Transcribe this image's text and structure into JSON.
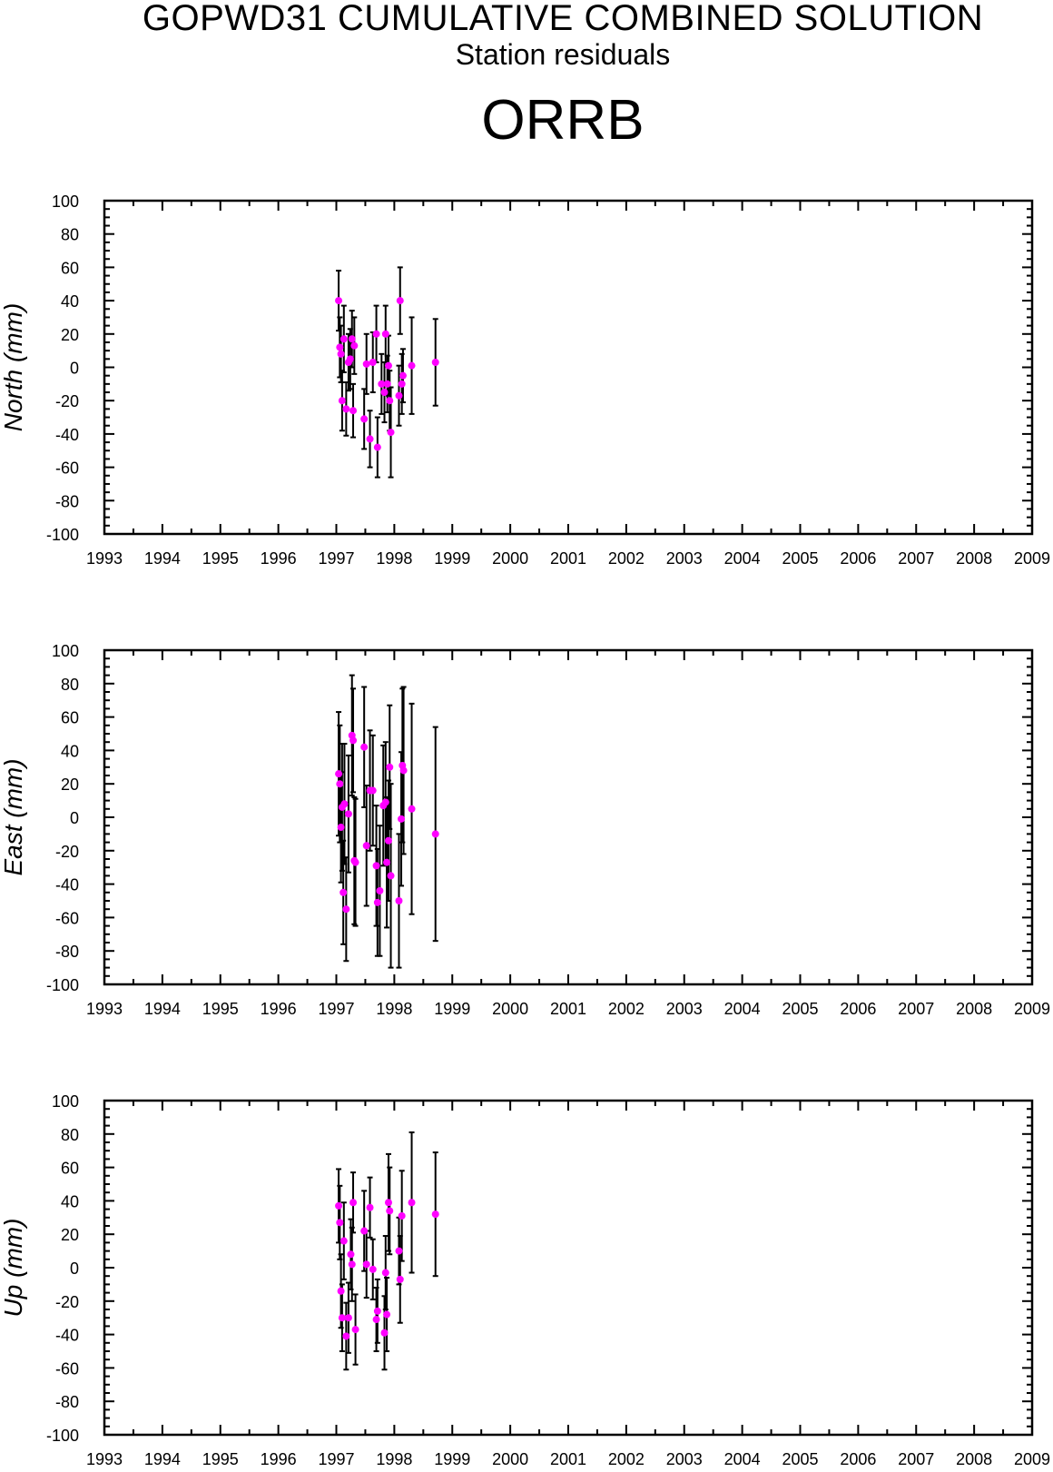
{
  "title": "GOPWD31 CUMULATIVE COMBINED SOLUTION",
  "subtitle": "Station residuals",
  "station": "ORRB",
  "colors": {
    "point": "#ff00ff",
    "errorbar": "#000000",
    "axis": "#000000"
  },
  "chart_data": [
    {
      "type": "scatter",
      "ylabel": "North (mm)",
      "xlim": [
        1993,
        2009
      ],
      "ylim": [
        -100,
        100
      ],
      "x_ticks": [
        "1993",
        "1994",
        "1995",
        "1996",
        "1997",
        "1998",
        "1999",
        "2000",
        "2001",
        "2002",
        "2003",
        "2004",
        "2005",
        "2006",
        "2007",
        "2008",
        "2009"
      ],
      "y_ticks": [
        "100",
        "80",
        "60",
        "40",
        "20",
        "0",
        "-20",
        "-40",
        "-60",
        "-80",
        "-100"
      ],
      "grid": false,
      "series": [
        {
          "points": [
            {
              "x": 1997.04,
              "y": 40,
              "err": 18
            },
            {
              "x": 1997.06,
              "y": 12,
              "err": 18
            },
            {
              "x": 1997.08,
              "y": 8,
              "err": 17
            },
            {
              "x": 1997.1,
              "y": -20,
              "err": 18
            },
            {
              "x": 1997.13,
              "y": 17,
              "err": 20
            },
            {
              "x": 1997.17,
              "y": -25,
              "err": 16
            },
            {
              "x": 1997.21,
              "y": 3,
              "err": 17
            },
            {
              "x": 1997.24,
              "y": 5,
              "err": 18
            },
            {
              "x": 1997.27,
              "y": 17,
              "err": 17
            },
            {
              "x": 1997.29,
              "y": -26,
              "err": 16
            },
            {
              "x": 1997.31,
              "y": 13,
              "err": 17
            },
            {
              "x": 1997.48,
              "y": -31,
              "err": 18
            },
            {
              "x": 1997.52,
              "y": 2,
              "err": 18
            },
            {
              "x": 1997.58,
              "y": -43,
              "err": 17
            },
            {
              "x": 1997.63,
              "y": 3,
              "err": 18
            },
            {
              "x": 1997.69,
              "y": 20,
              "err": 17
            },
            {
              "x": 1997.71,
              "y": -48,
              "err": 18
            },
            {
              "x": 1997.78,
              "y": -10,
              "err": 18
            },
            {
              "x": 1997.83,
              "y": -15,
              "err": 18
            },
            {
              "x": 1997.85,
              "y": 20,
              "err": 17
            },
            {
              "x": 1997.88,
              "y": -10,
              "err": 17
            },
            {
              "x": 1997.9,
              "y": 1,
              "err": 18
            },
            {
              "x": 1997.92,
              "y": -20,
              "err": 18
            },
            {
              "x": 1997.94,
              "y": -39,
              "err": 27
            },
            {
              "x": 1998.08,
              "y": -17,
              "err": 18
            },
            {
              "x": 1998.1,
              "y": 40,
              "err": 20
            },
            {
              "x": 1998.13,
              "y": -10,
              "err": 18
            },
            {
              "x": 1998.15,
              "y": -5,
              "err": 16
            },
            {
              "x": 1998.3,
              "y": 1,
              "err": 29
            },
            {
              "x": 1998.71,
              "y": 3,
              "err": 26
            }
          ]
        }
      ]
    },
    {
      "type": "scatter",
      "ylabel": "East (mm)",
      "xlim": [
        1993,
        2009
      ],
      "ylim": [
        -100,
        100
      ],
      "x_ticks": [
        "1993",
        "1994",
        "1995",
        "1996",
        "1997",
        "1998",
        "1999",
        "2000",
        "2001",
        "2002",
        "2003",
        "2004",
        "2005",
        "2006",
        "2007",
        "2008",
        "2009"
      ],
      "y_ticks": [
        "100",
        "80",
        "60",
        "40",
        "20",
        "0",
        "-20",
        "-40",
        "-60",
        "-80",
        "-100"
      ],
      "grid": false,
      "series": [
        {
          "points": [
            {
              "x": 1997.04,
              "y": 26,
              "err": 37
            },
            {
              "x": 1997.06,
              "y": 20,
              "err": 35
            },
            {
              "x": 1997.08,
              "y": -6,
              "err": 33
            },
            {
              "x": 1997.1,
              "y": 6,
              "err": 38
            },
            {
              "x": 1997.12,
              "y": -45,
              "err": 31
            },
            {
              "x": 1997.14,
              "y": 8,
              "err": 36
            },
            {
              "x": 1997.17,
              "y": -55,
              "err": 31
            },
            {
              "x": 1997.21,
              "y": 2,
              "err": 35
            },
            {
              "x": 1997.27,
              "y": 49,
              "err": 36
            },
            {
              "x": 1997.29,
              "y": 46,
              "err": 31
            },
            {
              "x": 1997.31,
              "y": -26,
              "err": 38
            },
            {
              "x": 1997.33,
              "y": -27,
              "err": 38
            },
            {
              "x": 1997.48,
              "y": 42,
              "err": 36
            },
            {
              "x": 1997.52,
              "y": -17,
              "err": 36
            },
            {
              "x": 1997.58,
              "y": 16,
              "err": 36
            },
            {
              "x": 1997.63,
              "y": 16,
              "err": 33
            },
            {
              "x": 1997.69,
              "y": -29,
              "err": 36
            },
            {
              "x": 1997.71,
              "y": -51,
              "err": 32
            },
            {
              "x": 1997.75,
              "y": -44,
              "err": 39
            },
            {
              "x": 1997.81,
              "y": 7,
              "err": 36
            },
            {
              "x": 1997.85,
              "y": 9,
              "err": 36
            },
            {
              "x": 1997.87,
              "y": -27,
              "err": 39
            },
            {
              "x": 1997.9,
              "y": -14,
              "err": 36
            },
            {
              "x": 1997.92,
              "y": 30,
              "err": 37
            },
            {
              "x": 1997.94,
              "y": -35,
              "err": 55
            },
            {
              "x": 1998.08,
              "y": -50,
              "err": 40
            },
            {
              "x": 1998.12,
              "y": -1,
              "err": 40
            },
            {
              "x": 1998.14,
              "y": 31,
              "err": 46
            },
            {
              "x": 1998.16,
              "y": 28,
              "err": 50
            },
            {
              "x": 1998.3,
              "y": 5,
              "err": 63
            },
            {
              "x": 1998.71,
              "y": -10,
              "err": 64
            }
          ]
        }
      ]
    },
    {
      "type": "scatter",
      "ylabel": "Up (mm)",
      "xlim": [
        1993,
        2009
      ],
      "ylim": [
        -100,
        100
      ],
      "x_ticks": [
        "1993",
        "1994",
        "1995",
        "1996",
        "1997",
        "1998",
        "1999",
        "2000",
        "2001",
        "2002",
        "2003",
        "2004",
        "2005",
        "2006",
        "2007",
        "2008",
        "2009"
      ],
      "y_ticks": [
        "100",
        "80",
        "60",
        "40",
        "20",
        "0",
        "-20",
        "-40",
        "-60",
        "-80",
        "-100"
      ],
      "grid": false,
      "series": [
        {
          "points": [
            {
              "x": 1997.04,
              "y": 37,
              "err": 22
            },
            {
              "x": 1997.06,
              "y": 27,
              "err": 22
            },
            {
              "x": 1997.08,
              "y": -14,
              "err": 22
            },
            {
              "x": 1997.1,
              "y": -30,
              "err": 20
            },
            {
              "x": 1997.13,
              "y": 16,
              "err": 23
            },
            {
              "x": 1997.17,
              "y": -41,
              "err": 20
            },
            {
              "x": 1997.21,
              "y": -30,
              "err": 21
            },
            {
              "x": 1997.25,
              "y": 8,
              "err": 21
            },
            {
              "x": 1997.27,
              "y": 2,
              "err": 22
            },
            {
              "x": 1997.29,
              "y": 39,
              "err": 18
            },
            {
              "x": 1997.33,
              "y": -37,
              "err": 21
            },
            {
              "x": 1997.48,
              "y": 22,
              "err": 24
            },
            {
              "x": 1997.52,
              "y": 2,
              "err": 20
            },
            {
              "x": 1997.58,
              "y": 36,
              "err": 18
            },
            {
              "x": 1997.63,
              "y": -1,
              "err": 18
            },
            {
              "x": 1997.69,
              "y": -31,
              "err": 19
            },
            {
              "x": 1997.71,
              "y": -26,
              "err": 19
            },
            {
              "x": 1997.83,
              "y": -39,
              "err": 22
            },
            {
              "x": 1997.85,
              "y": -3,
              "err": 22
            },
            {
              "x": 1997.87,
              "y": -28,
              "err": 22
            },
            {
              "x": 1997.9,
              "y": 39,
              "err": 29
            },
            {
              "x": 1997.92,
              "y": 34,
              "err": 26
            },
            {
              "x": 1998.08,
              "y": 10,
              "err": 20
            },
            {
              "x": 1998.1,
              "y": -7,
              "err": 26
            },
            {
              "x": 1998.13,
              "y": 31,
              "err": 27
            },
            {
              "x": 1998.3,
              "y": 39,
              "err": 42
            },
            {
              "x": 1998.71,
              "y": 32,
              "err": 37
            }
          ]
        }
      ]
    }
  ]
}
